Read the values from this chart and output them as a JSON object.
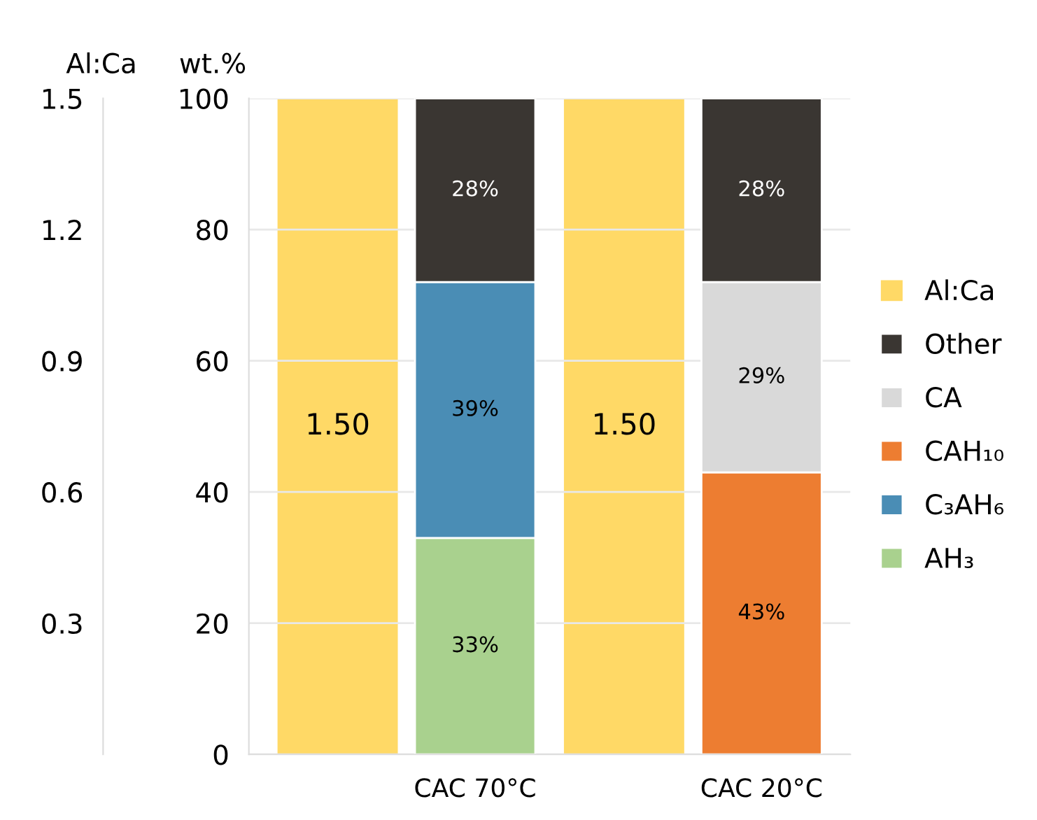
{
  "chart_data": {
    "type": "bar",
    "stacked": true,
    "categories": [
      "CAC 70°C",
      "CAC 20°C"
    ],
    "ylabel": "wt.%",
    "y2label": "Al:Ca",
    "ylim": [
      0,
      100
    ],
    "yticks": [
      0,
      20,
      40,
      60,
      80,
      100
    ],
    "y2lim": [
      0,
      1.5
    ],
    "y2ticks": [
      0.3,
      0.6,
      0.9,
      1.2,
      1.5
    ],
    "grid": "y",
    "legend": "right",
    "series": [
      {
        "name": "Al:Ca",
        "color": "#ffd966",
        "axis": "y2",
        "values": [
          1.5,
          1.5
        ],
        "value_labels": [
          "1.50",
          "1.50"
        ]
      },
      {
        "name": "AH₃",
        "color": "#a9d18e",
        "values": [
          33,
          null
        ],
        "value_labels": [
          "33%",
          null
        ]
      },
      {
        "name": "C₃AH₆",
        "color": "#4a8db5",
        "values": [
          39,
          null
        ],
        "value_labels": [
          "39%",
          null
        ]
      },
      {
        "name": "CAH₁₀",
        "color": "#ed7d31",
        "values": [
          null,
          43
        ],
        "value_labels": [
          null,
          "43%"
        ]
      },
      {
        "name": "CA",
        "color": "#d9d9d9",
        "values": [
          null,
          29
        ],
        "value_labels": [
          null,
          "29%"
        ]
      },
      {
        "name": "Other",
        "color": "#3a3632",
        "values": [
          28,
          28
        ],
        "value_labels": [
          "28%",
          "28%"
        ]
      }
    ]
  }
}
